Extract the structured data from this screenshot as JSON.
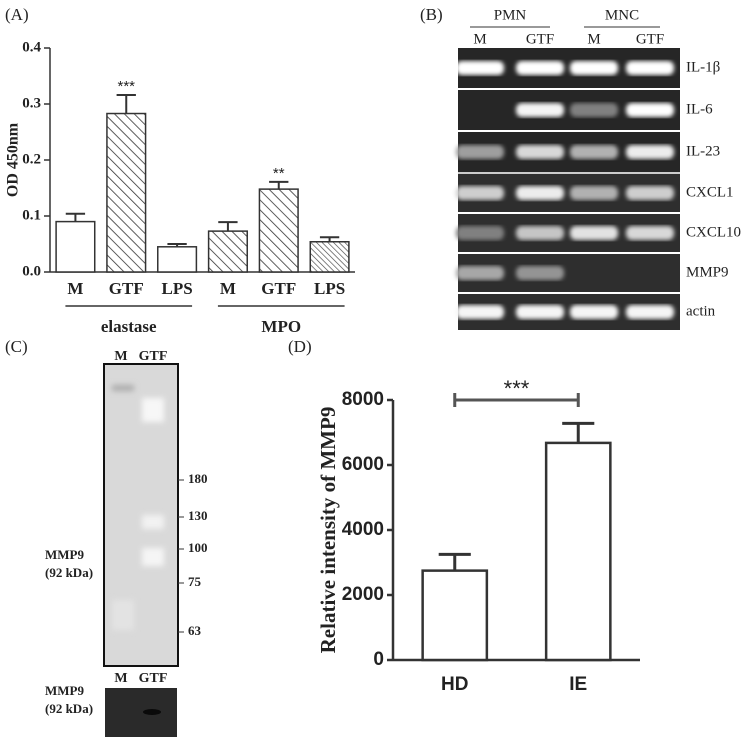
{
  "chart_data": [
    {
      "type": "bar",
      "panel": "(A)",
      "y_label": "OD 450nm",
      "categories": [
        "M",
        "GTF",
        "LPS",
        "M",
        "GTF",
        "LPS"
      ],
      "groups": [
        "elastase",
        "MPO"
      ],
      "values": [
        0.09,
        0.283,
        0.045,
        0.073,
        0.148,
        0.054
      ],
      "errors": [
        0.014,
        0.033,
        0.005,
        0.016,
        0.013,
        0.008
      ],
      "value_annotations": [
        null,
        "***",
        null,
        null,
        "**",
        null
      ],
      "patterns": [
        "none",
        "hatch",
        "none",
        "hatch",
        "hatch",
        "hatch-dense"
      ],
      "color": "#ffffff",
      "ylim": [
        0,
        0.4
      ],
      "yticks": [
        {
          "value": 0,
          "label": "0.0"
        },
        0.1,
        0.2,
        0.3,
        0.4
      ]
    },
    {
      "type": "bar",
      "panel": "(D)",
      "y_label": "Relative intensity of MMP9",
      "categories": [
        "HD",
        "IE"
      ],
      "values": [
        2750,
        6680
      ],
      "errors": [
        500,
        600
      ],
      "significance": "***",
      "color": "#ffffff",
      "ylim": [
        0,
        8000
      ],
      "yticks": [
        0,
        2000,
        4000,
        6000,
        8000
      ]
    }
  ],
  "gel": {
    "panel": "(B)",
    "groups": [
      "PMN",
      "MNC"
    ],
    "lanes": [
      "M",
      "GTF",
      "M",
      "GTF"
    ],
    "genes": [
      "IL-1β",
      "IL-6",
      "IL-23",
      "CXCL1",
      "CXCL10",
      "MMP9",
      "actin"
    ]
  },
  "blot": {
    "panel": "(C)",
    "lanes": [
      "M",
      "GTF"
    ],
    "markers": [
      "180",
      "130",
      "100",
      "75",
      "63"
    ],
    "label": [
      "MMP9",
      "(92 kDa)"
    ],
    "lower_lanes": [
      "M",
      "GTF"
    ],
    "lower_label": [
      "MMP9",
      "(92 kDa)"
    ]
  }
}
